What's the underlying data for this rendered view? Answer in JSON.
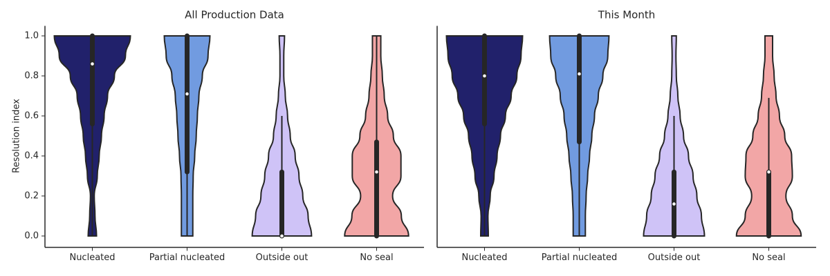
{
  "chart_data": [
    {
      "type": "violin",
      "title": "All Production Data",
      "ylabel": "Resolution index",
      "categories": [
        "Nucleated",
        "Partial nucleated",
        "Outside out",
        "No seal"
      ],
      "colors": [
        "#21216b",
        "#719be0",
        "#cfc3f7",
        "#f2a6a6"
      ],
      "ylim": [
        -0.05,
        1.05
      ],
      "yticks": [
        {
          "value": 0,
          "label": "0.0"
        },
        0.2,
        0.4,
        0.6,
        0.8,
        {
          "value": 1,
          "label": "1.0"
        }
      ],
      "density_y": [
        0,
        0.1,
        0.2,
        0.3,
        0.4,
        0.5,
        0.6,
        0.7,
        0.8,
        0.9,
        1
      ],
      "violins": [
        {
          "min": 0,
          "q1": 0.56,
          "median": 0.86,
          "q3": 1,
          "max": 1,
          "widths": [
            0.11,
            0.07,
            0.05,
            0.13,
            0.18,
            0.24,
            0.31,
            0.4,
            0.58,
            0.87,
            1.0
          ]
        },
        {
          "min": 0,
          "q1": 0.32,
          "median": 0.71,
          "q3": 1,
          "max": 1,
          "widths": [
            0.15,
            0.15,
            0.15,
            0.16,
            0.2,
            0.24,
            0.27,
            0.31,
            0.4,
            0.55,
            0.6
          ]
        },
        {
          "min": 0,
          "q1": 0,
          "median": 0,
          "q3": 0.32,
          "max": 0.6,
          "widths": [
            0.78,
            0.69,
            0.55,
            0.45,
            0.35,
            0.22,
            0.15,
            0.09,
            0.05,
            0.05,
            0.07
          ]
        },
        {
          "min": 0,
          "q1": 0,
          "median": 0.32,
          "q3": 0.47,
          "max": 1,
          "widths": [
            0.84,
            0.65,
            0.42,
            0.64,
            0.64,
            0.44,
            0.29,
            0.2,
            0.15,
            0.11,
            0.11
          ]
        }
      ]
    },
    {
      "type": "violin",
      "title": "This Month",
      "categories": [
        "Nucleated",
        "Partial nucleated",
        "Outside out",
        "No seal"
      ],
      "colors": [
        "#21216b",
        "#719be0",
        "#cfc3f7",
        "#f2a6a6"
      ],
      "ylim": [
        -0.05,
        1.05
      ],
      "density_y": [
        0,
        0.1,
        0.2,
        0.3,
        0.4,
        0.5,
        0.6,
        0.7,
        0.8,
        0.9,
        1
      ],
      "violins": [
        {
          "min": 0,
          "q1": 0.56,
          "median": 0.8,
          "q3": 1,
          "max": 1,
          "widths": [
            0.1,
            0.09,
            0.15,
            0.25,
            0.33,
            0.42,
            0.55,
            0.7,
            0.85,
            0.96,
            1.0
          ]
        },
        {
          "min": 0,
          "q1": 0.47,
          "median": 0.81,
          "q3": 1,
          "max": 1,
          "widths": [
            0.16,
            0.16,
            0.18,
            0.22,
            0.27,
            0.33,
            0.4,
            0.5,
            0.62,
            0.75,
            0.78
          ]
        },
        {
          "min": 0,
          "q1": 0,
          "median": 0.16,
          "q3": 0.32,
          "max": 0.6,
          "widths": [
            0.8,
            0.72,
            0.6,
            0.5,
            0.38,
            0.25,
            0.16,
            0.1,
            0.06,
            0.05,
            0.06
          ]
        },
        {
          "min": 0,
          "q1": 0,
          "median": 0.32,
          "q3": 0.32,
          "max": 0.69,
          "widths": [
            0.85,
            0.62,
            0.45,
            0.62,
            0.6,
            0.42,
            0.28,
            0.19,
            0.14,
            0.1,
            0.1
          ]
        }
      ]
    }
  ]
}
